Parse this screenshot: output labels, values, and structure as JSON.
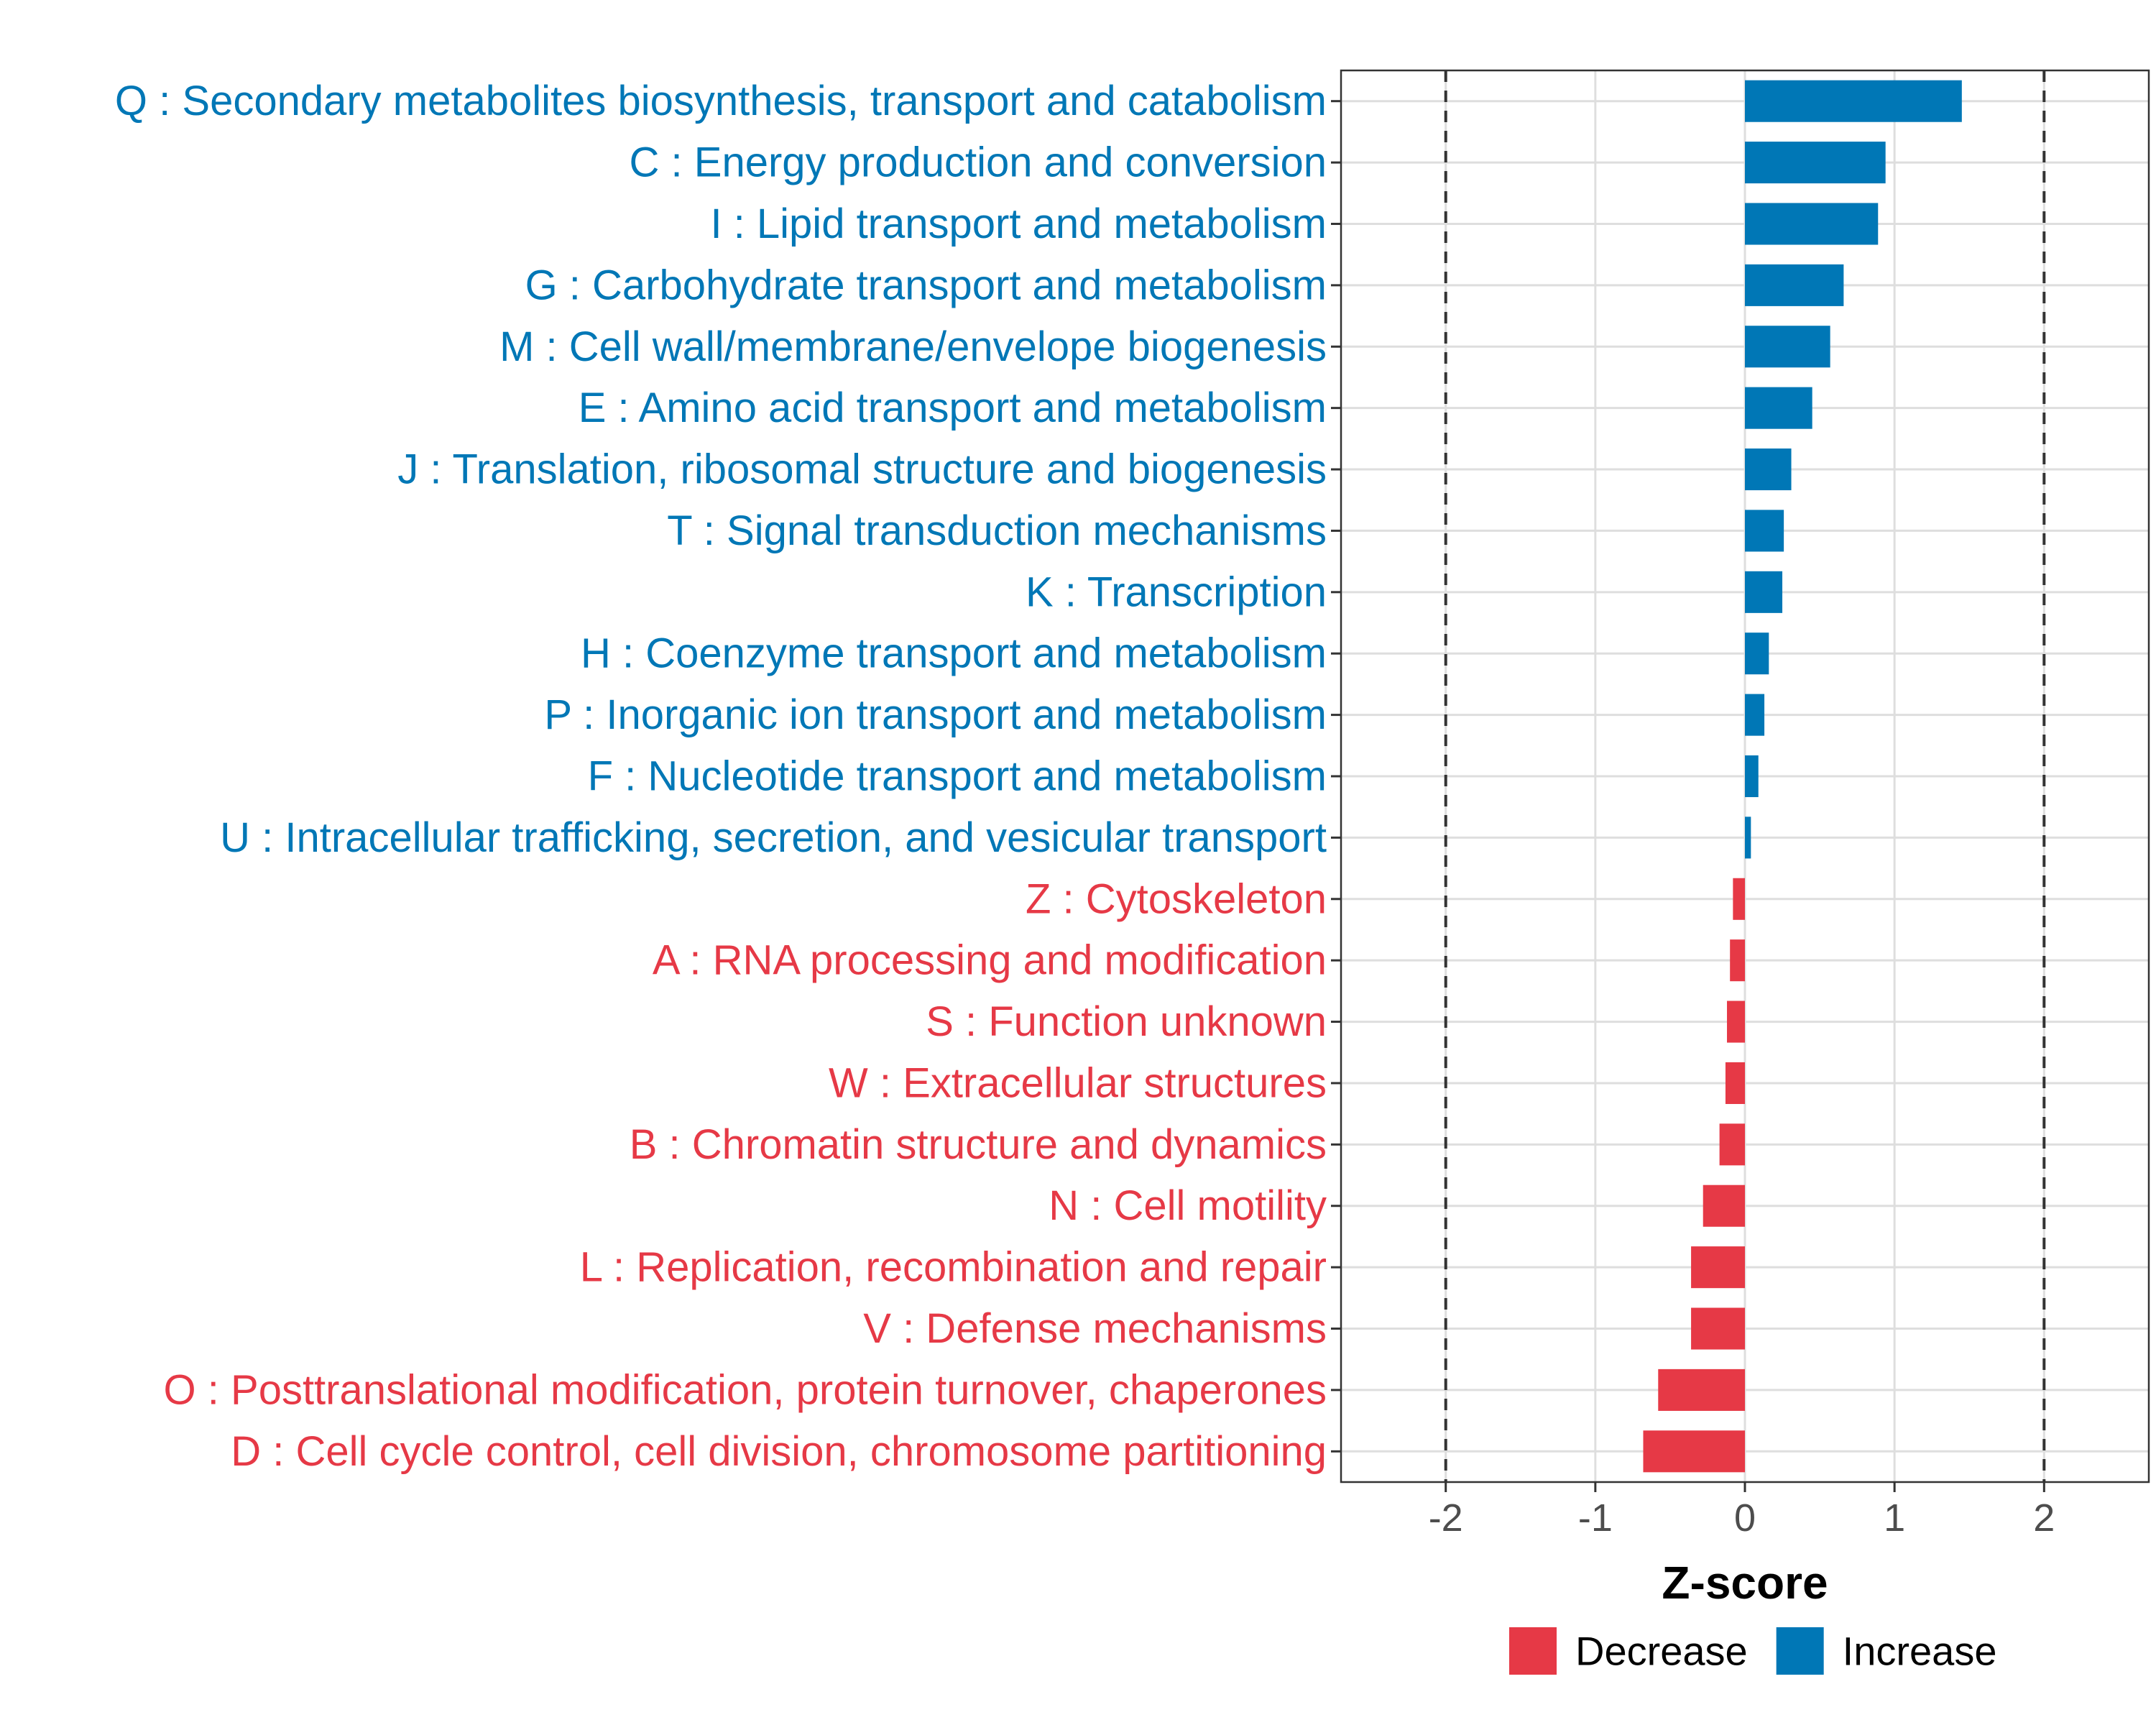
{
  "chart_data": {
    "type": "bar",
    "orientation": "horizontal",
    "title": "",
    "xlabel": "Z-score",
    "ylabel": "",
    "xlim": [
      -2.7,
      2.7
    ],
    "x_ticks": [
      -2,
      -1,
      0,
      1,
      2
    ],
    "x_tick_labels": [
      "-2",
      "-1",
      "0",
      "1",
      "2"
    ],
    "reference_lines": [
      -2,
      2
    ],
    "grid": true,
    "legend_position": "bottom",
    "colors": {
      "Decrease": "#E63946",
      "Increase": "#0077B6"
    },
    "legend": [
      {
        "label": "Decrease",
        "color": "#E63946"
      },
      {
        "label": "Increase",
        "color": "#0077B6"
      }
    ],
    "categories": [
      "Q : Secondary metabolites biosynthesis, transport and catabolism",
      "C : Energy production and conversion",
      "I : Lipid transport and metabolism",
      "G : Carbohydrate transport and metabolism",
      "M : Cell wall/membrane/envelope biogenesis",
      "E : Amino acid transport and metabolism",
      "J : Translation, ribosomal structure and biogenesis",
      "T : Signal transduction mechanisms",
      "K : Transcription",
      "H : Coenzyme transport and metabolism",
      "P : Inorganic ion transport and metabolism",
      "F : Nucleotide transport and metabolism",
      "U : Intracellular trafficking, secretion, and vesicular transport",
      "Z : Cytoskeleton",
      "A : RNA processing and modification",
      "S : Function unknown",
      "W : Extracellular structures",
      "B : Chromatin structure and dynamics",
      "N : Cell motility",
      "L : Replication, recombination and repair",
      "V : Defense mechanisms",
      "O : Posttranslational modification, protein turnover, chaperones",
      "D : Cell cycle control, cell division, chromosome partitioning"
    ],
    "values": [
      1.45,
      0.94,
      0.89,
      0.66,
      0.57,
      0.45,
      0.31,
      0.26,
      0.25,
      0.16,
      0.13,
      0.09,
      0.04,
      -0.08,
      -0.1,
      -0.12,
      -0.13,
      -0.17,
      -0.28,
      -0.36,
      -0.36,
      -0.58,
      -0.68
    ],
    "group": [
      "Increase",
      "Increase",
      "Increase",
      "Increase",
      "Increase",
      "Increase",
      "Increase",
      "Increase",
      "Increase",
      "Increase",
      "Increase",
      "Increase",
      "Increase",
      "Decrease",
      "Decrease",
      "Decrease",
      "Decrease",
      "Decrease",
      "Decrease",
      "Decrease",
      "Decrease",
      "Decrease",
      "Decrease"
    ]
  }
}
